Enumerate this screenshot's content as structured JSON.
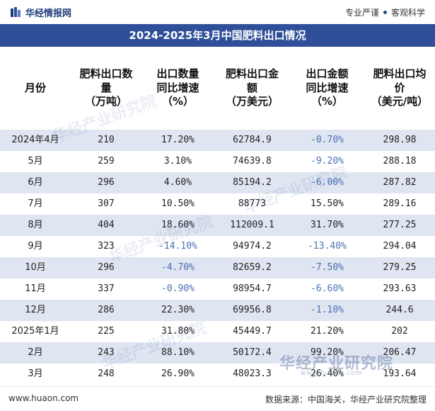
{
  "brand": {
    "site_name": "华经情报网",
    "slogan_left": "专业严谨",
    "slogan_right": "客观科学",
    "watermark": "华经产业研究院",
    "watermark_en": "www.huaon.com"
  },
  "title": "2024-2025年3月中国肥料出口情况",
  "columns": [
    {
      "lines": [
        "月份"
      ]
    },
    {
      "lines": [
        "肥料出口数",
        "量",
        "（万吨）"
      ]
    },
    {
      "lines": [
        "出口数量",
        "同比增速",
        "（%）"
      ]
    },
    {
      "lines": [
        "肥料出口金",
        "额",
        "（万美元）"
      ]
    },
    {
      "lines": [
        "出口金额",
        "同比增速",
        "（%）"
      ]
    },
    {
      "lines": [
        "肥料出口均",
        "价",
        "（美元/吨）"
      ]
    }
  ],
  "rows": [
    {
      "month": "2024年4月",
      "qty": "210",
      "qty_yoy": "17.20%",
      "amt": "62784.9",
      "amt_yoy": "-0.70%",
      "price": "298.98"
    },
    {
      "month": "5月",
      "qty": "259",
      "qty_yoy": "3.10%",
      "amt": "74639.8",
      "amt_yoy": "-9.20%",
      "price": "288.18"
    },
    {
      "month": "6月",
      "qty": "296",
      "qty_yoy": "4.60%",
      "amt": "85194.2",
      "amt_yoy": "-6.00%",
      "price": "287.82"
    },
    {
      "month": "7月",
      "qty": "307",
      "qty_yoy": "10.50%",
      "amt": "88773",
      "amt_yoy": "15.50%",
      "price": "289.16"
    },
    {
      "month": "8月",
      "qty": "404",
      "qty_yoy": "18.60%",
      "amt": "112009.1",
      "amt_yoy": "31.70%",
      "price": "277.25"
    },
    {
      "month": "9月",
      "qty": "323",
      "qty_yoy": "-14.10%",
      "amt": "94974.2",
      "amt_yoy": "-13.40%",
      "price": "294.04"
    },
    {
      "month": "10月",
      "qty": "296",
      "qty_yoy": "-4.70%",
      "amt": "82659.2",
      "amt_yoy": "-7.50%",
      "price": "279.25"
    },
    {
      "month": "11月",
      "qty": "337",
      "qty_yoy": "-0.90%",
      "amt": "98954.7",
      "amt_yoy": "-6.60%",
      "price": "293.63"
    },
    {
      "month": "12月",
      "qty": "286",
      "qty_yoy": "22.30%",
      "amt": "69956.8",
      "amt_yoy": "-1.10%",
      "price": "244.6"
    },
    {
      "month": "2025年1月",
      "qty": "225",
      "qty_yoy": "31.80%",
      "amt": "45449.7",
      "amt_yoy": "21.20%",
      "price": "202"
    },
    {
      "month": "2月",
      "qty": "243",
      "qty_yoy": "88.10%",
      "amt": "50172.4",
      "amt_yoy": "99.20%",
      "price": "206.47"
    },
    {
      "month": "3月",
      "qty": "248",
      "qty_yoy": "26.90%",
      "amt": "48023.3",
      "amt_yoy": "26.40%",
      "price": "193.64"
    }
  ],
  "footer": {
    "url": "www.huaon.com",
    "source": "数据来源：中国海关，华经产业研究院整理"
  },
  "colors": {
    "title_bg": "#2f4f99",
    "row_alt_bg": "#dfe5f1",
    "negative_text": "#4a6fb5"
  }
}
